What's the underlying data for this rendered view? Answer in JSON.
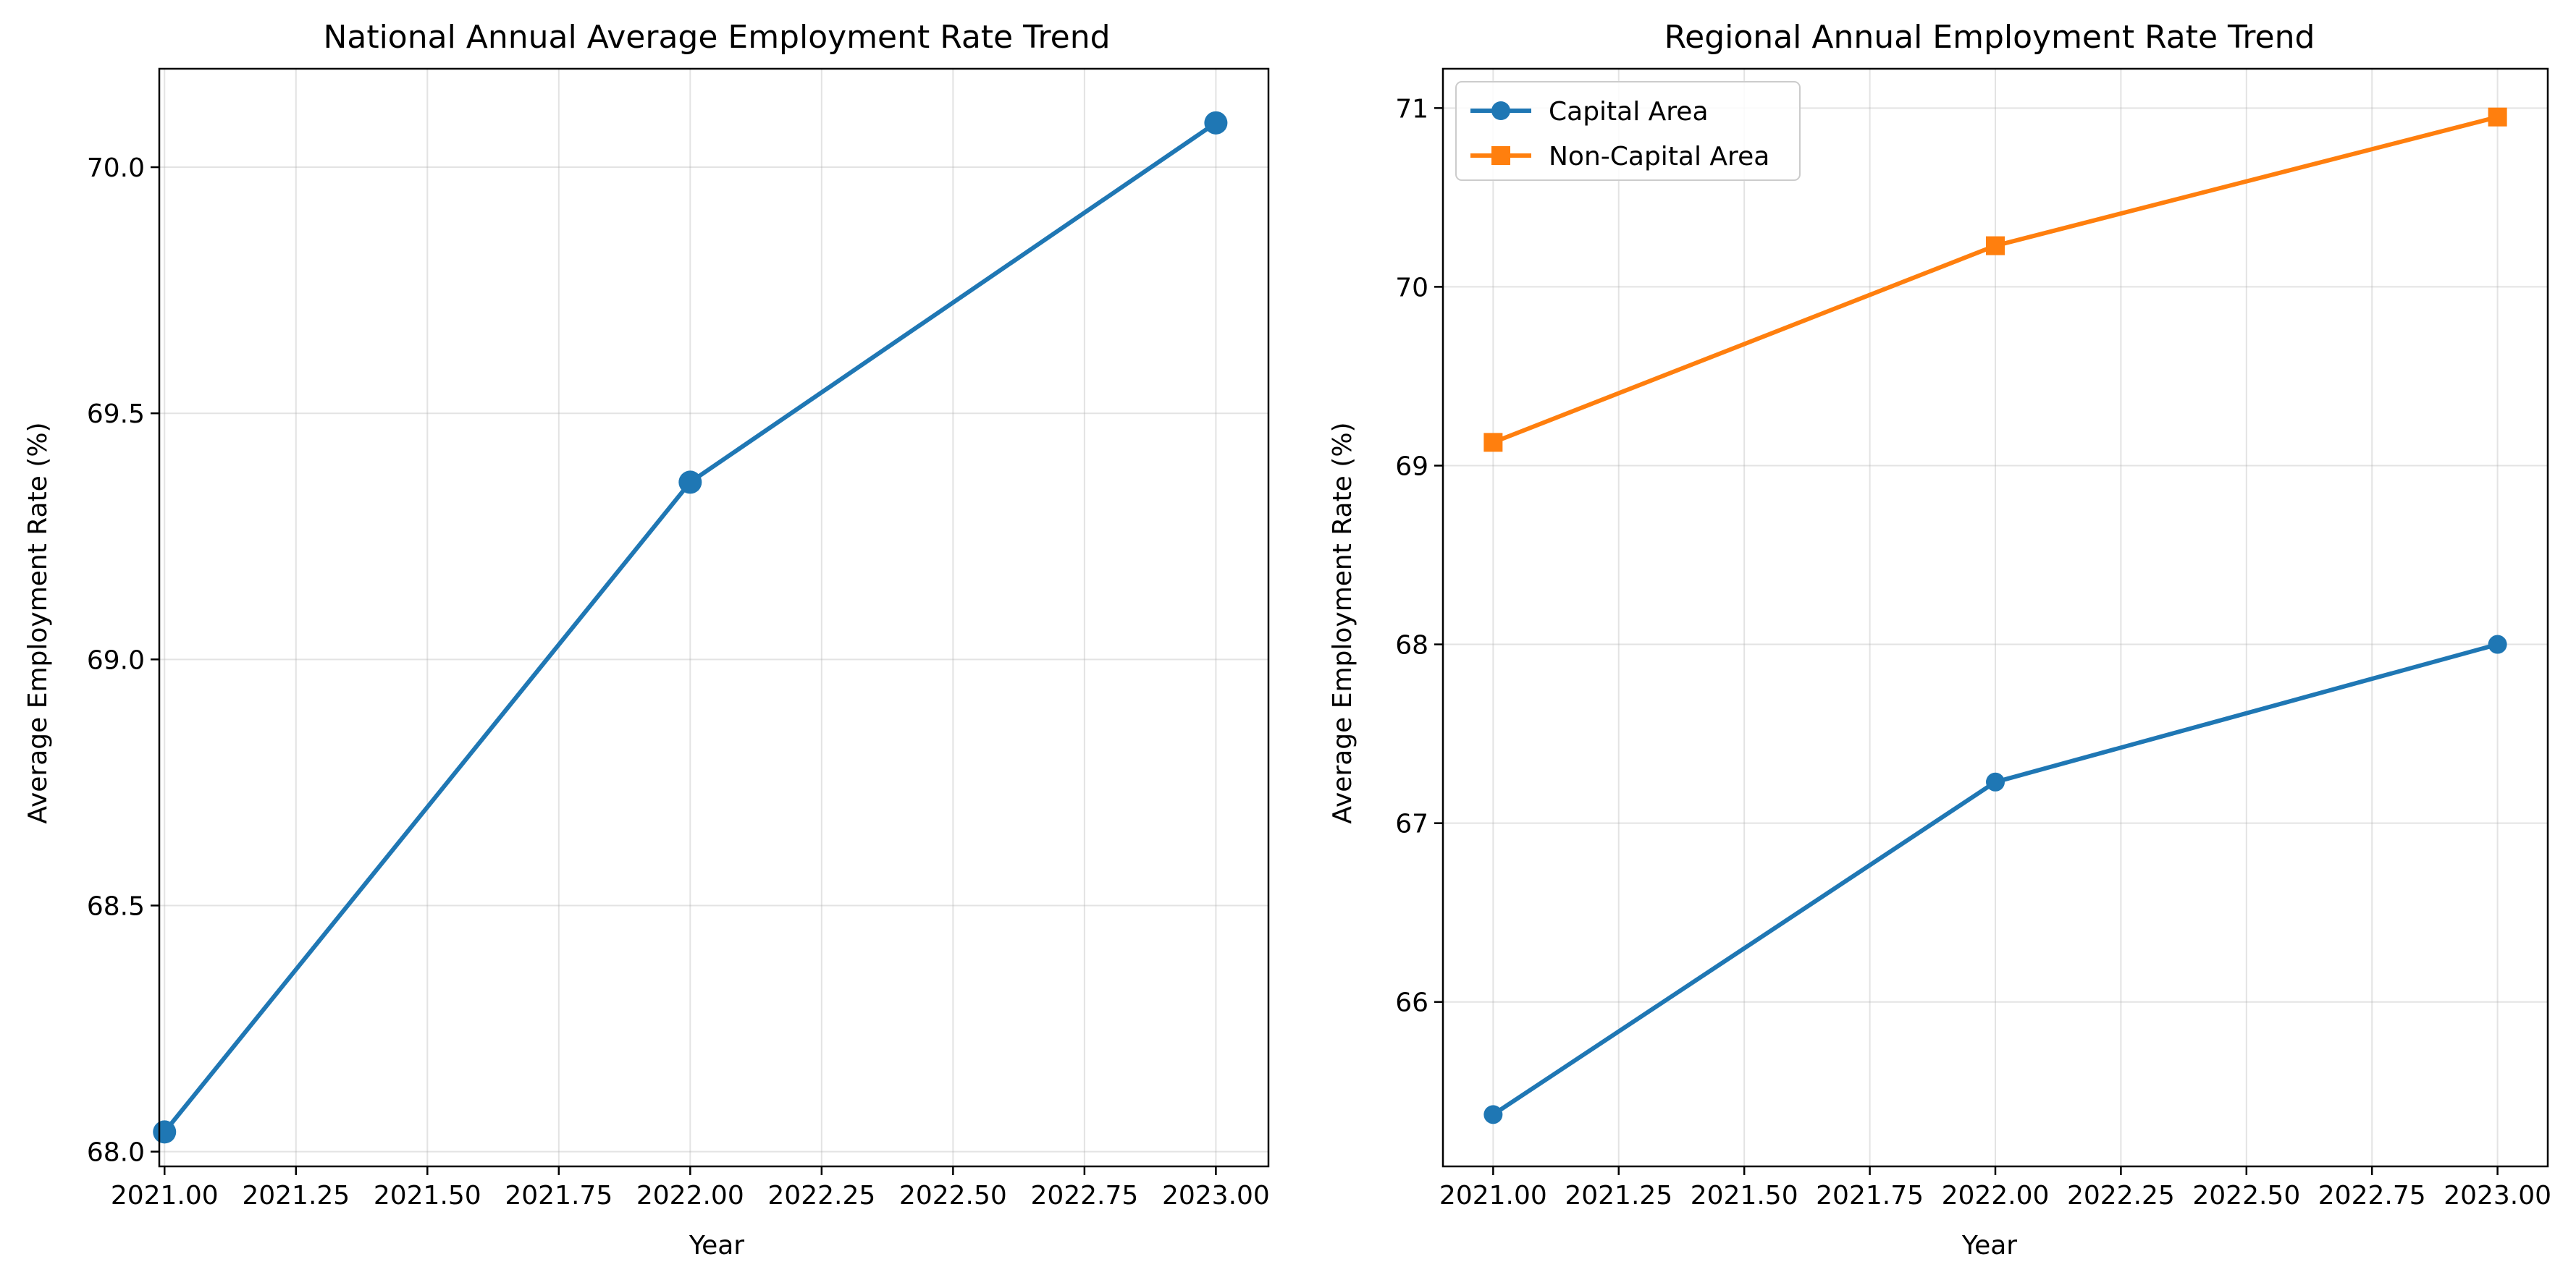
{
  "chart_data": [
    {
      "type": "line",
      "title": "National Annual Average Employment Rate Trend",
      "xlabel": "Year",
      "ylabel": "Average Employment Rate (%)",
      "xlim": [
        2020.99,
        2023.1
      ],
      "ylim": [
        67.97,
        70.2
      ],
      "xticks": [
        2021.0,
        2021.25,
        2021.5,
        2021.75,
        2022.0,
        2022.25,
        2022.5,
        2022.75,
        2023.0
      ],
      "xtick_labels": [
        "2021.00",
        "2021.25",
        "2021.50",
        "2021.75",
        "2022.00",
        "2022.25",
        "2022.50",
        "2022.75",
        "2023.00"
      ],
      "yticks": [
        68.0,
        68.5,
        69.0,
        69.5,
        70.0
      ],
      "ytick_labels": [
        "68.0",
        "68.5",
        "69.0",
        "69.5",
        "70.0"
      ],
      "grid": true,
      "series": [
        {
          "x": [
            2021,
            2022,
            2023
          ],
          "values": [
            68.04,
            69.36,
            70.09
          ],
          "color": "#1f77b4",
          "marker": "circle"
        }
      ]
    },
    {
      "type": "line",
      "title": "Regional Annual Employment Rate Trend",
      "xlabel": "Year",
      "ylabel": "Average Employment Rate (%)",
      "xlim": [
        2020.9,
        2023.1
      ],
      "ylim": [
        65.08,
        71.22
      ],
      "xticks": [
        2021.0,
        2021.25,
        2021.5,
        2021.75,
        2022.0,
        2022.25,
        2022.5,
        2022.75,
        2023.0
      ],
      "xtick_labels": [
        "2021.00",
        "2021.25",
        "2021.50",
        "2021.75",
        "2022.00",
        "2022.25",
        "2022.50",
        "2022.75",
        "2023.00"
      ],
      "yticks": [
        66,
        67,
        68,
        69,
        70,
        71
      ],
      "ytick_labels": [
        "66",
        "67",
        "68",
        "69",
        "70",
        "71"
      ],
      "grid": true,
      "legend": "top-left",
      "series": [
        {
          "name": "Capital Area",
          "x": [
            2021,
            2022,
            2023
          ],
          "values": [
            65.37,
            67.23,
            68.0
          ],
          "color": "#1f77b4",
          "marker": "circle"
        },
        {
          "name": "Non-Capital Area",
          "x": [
            2021,
            2022,
            2023
          ],
          "values": [
            69.13,
            70.23,
            70.95
          ],
          "color": "#ff7f0e",
          "marker": "square"
        }
      ]
    }
  ]
}
